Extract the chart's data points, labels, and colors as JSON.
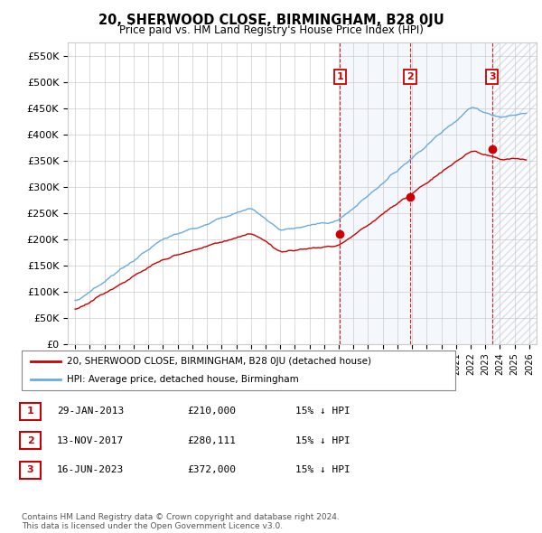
{
  "title": "20, SHERWOOD CLOSE, BIRMINGHAM, B28 0JU",
  "subtitle": "Price paid vs. HM Land Registry's House Price Index (HPI)",
  "hpi_color": "#6aabe0",
  "price_color": "#cc0000",
  "background_color": "#ffffff",
  "grid_color": "#cccccc",
  "transactions": [
    {
      "label": "1",
      "date_num": 2013.08,
      "price": 210000,
      "note": "29-JAN-2013",
      "display": "£210,000",
      "pct": "15% ↓ HPI"
    },
    {
      "label": "2",
      "date_num": 2017.87,
      "price": 280111,
      "note": "13-NOV-2017",
      "display": "£280,111",
      "pct": "15% ↓ HPI"
    },
    {
      "label": "3",
      "date_num": 2023.46,
      "price": 372000,
      "note": "16-JUN-2023",
      "display": "£372,000",
      "pct": "15% ↓ HPI"
    }
  ],
  "ylim": [
    0,
    575000
  ],
  "xlim": [
    1994.5,
    2026.5
  ],
  "yticks": [
    0,
    50000,
    100000,
    150000,
    200000,
    250000,
    300000,
    350000,
    400000,
    450000,
    500000,
    550000
  ],
  "legend_entries": [
    "20, SHERWOOD CLOSE, BIRMINGHAM, B28 0JU (detached house)",
    "HPI: Average price, detached house, Birmingham"
  ],
  "footer": "Contains HM Land Registry data © Crown copyright and database right 2024.\nThis data is licensed under the Open Government Licence v3.0.",
  "table_rows": [
    [
      "1",
      "29-JAN-2013",
      "£210,000",
      "15% ↓ HPI"
    ],
    [
      "2",
      "13-NOV-2017",
      "£280,111",
      "15% ↓ HPI"
    ],
    [
      "3",
      "16-JUN-2023",
      "£372,000",
      "15% ↓ HPI"
    ]
  ]
}
